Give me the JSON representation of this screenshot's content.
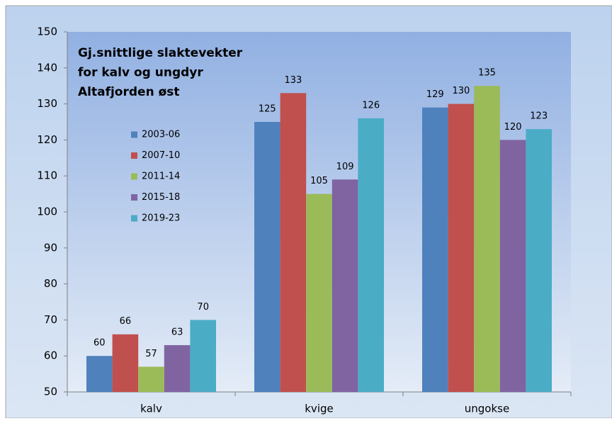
{
  "chart_data": {
    "type": "bar",
    "title": [
      "Gj.snittlige slaktevekter",
      "for kalv og ungdyr",
      "Altafjorden øst"
    ],
    "categories": [
      "kalv",
      "kvige",
      "ungokse"
    ],
    "series": [
      {
        "name": "2003-06",
        "color": "#4f81bd",
        "values": [
          60,
          125,
          129
        ]
      },
      {
        "name": "2007-10",
        "color": "#c0504d",
        "values": [
          66,
          133,
          130
        ]
      },
      {
        "name": "2011-14",
        "color": "#9bbb59",
        "values": [
          57,
          105,
          135
        ]
      },
      {
        "name": "2015-18",
        "color": "#8064a2",
        "values": [
          63,
          109,
          120
        ]
      },
      {
        "name": "2019-23",
        "color": "#4bacc6",
        "values": [
          70,
          126,
          123
        ]
      }
    ],
    "ylim": [
      50,
      150
    ],
    "yticks": [
      50,
      60,
      70,
      80,
      90,
      100,
      110,
      120,
      130,
      140,
      150
    ],
    "grid": false,
    "legend": "inside"
  }
}
